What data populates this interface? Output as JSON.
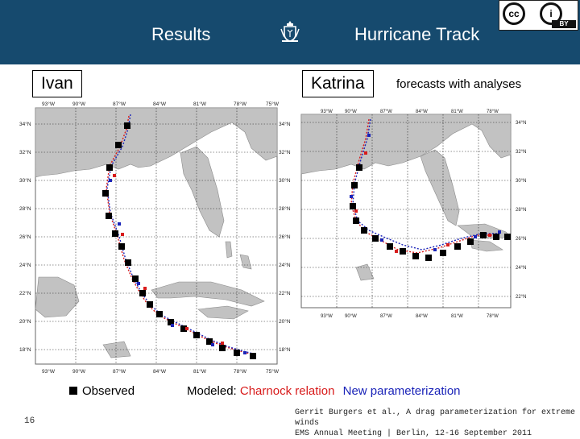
{
  "header": {
    "left_title": "Results",
    "right_title": "Hurricane Track",
    "license": {
      "cc": "cc",
      "i": "i",
      "by": "BY"
    }
  },
  "panels": {
    "ivan_label": "Ivan",
    "katrina_label": "Katrina",
    "subtitle": "forecasts with analyses"
  },
  "ivan_map": {
    "lon_labels": [
      "93°W",
      "90°W",
      "87°W",
      "84°W",
      "81°W",
      "78°W",
      "75°W"
    ],
    "lat_labels": [
      "34°N",
      "32°N",
      "30°N",
      "28°N",
      "26°N",
      "24°N",
      "22°N",
      "20°N",
      "18°N"
    ]
  },
  "katrina_map": {
    "lon_labels": [
      "93°W",
      "90°W",
      "87°W",
      "84°W",
      "81°W",
      "78°W"
    ],
    "lat_labels": [
      "34°N",
      "32°N",
      "30°N",
      "28°N",
      "26°N",
      "24°N",
      "22°N"
    ]
  },
  "legend": {
    "observed": "Observed",
    "modeled_prefix": "Modeled: ",
    "charnock": "Charnock relation",
    "new_param": "New parameterization",
    "colors": {
      "observed": "#000000",
      "charnock": "#d81b1b",
      "new_param": "#1a23b8",
      "land": "#bfbfbf",
      "sea": "#ffffff"
    }
  },
  "footer": {
    "page_number": "16",
    "line1": "Gerrit Burgers et al., A drag parameterization for extreme winds",
    "line2": "EMS Annual Meeting | Berlin, 12-16 September 2011"
  }
}
